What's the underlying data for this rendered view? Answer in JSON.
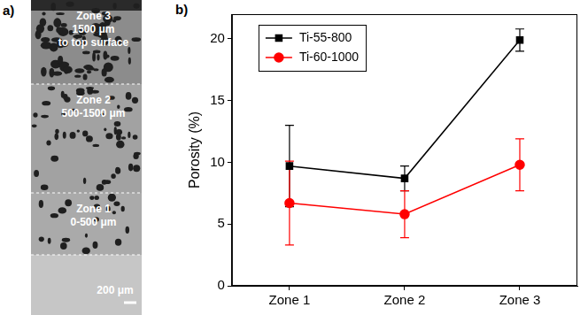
{
  "panel_a": {
    "letter": "a)",
    "zones": [
      {
        "lines": [
          "Zone 3",
          "1500 μm",
          "to top surface"
        ]
      },
      {
        "lines": [
          "Zone 2",
          "500-1500 μm"
        ]
      },
      {
        "lines": [
          "Zone 1",
          "0-500 μm"
        ]
      }
    ],
    "scale_bar": "200 μm"
  },
  "panel_b_letter": "b)",
  "chart_data": {
    "type": "line",
    "categories": [
      "Zone 1",
      "Zone 2",
      "Zone 3"
    ],
    "y_label": "Porosity (%)",
    "ylim": [
      0,
      22
    ],
    "yticks": [
      0,
      5,
      10,
      15,
      20
    ],
    "grid": false,
    "legend": "upper left",
    "series": [
      {
        "name": "Ti-55-800",
        "color": "#000000",
        "marker": "square",
        "line_style": "solid",
        "values": [
          9.7,
          8.7,
          19.9
        ],
        "errors": [
          3.3,
          1.0,
          0.9
        ]
      },
      {
        "name": "Ti-60-1000",
        "color": "#ff0000",
        "marker": "circle",
        "line_style": "solid",
        "values": [
          6.7,
          5.8,
          9.8
        ],
        "errors": [
          3.4,
          1.9,
          2.1
        ]
      }
    ]
  }
}
